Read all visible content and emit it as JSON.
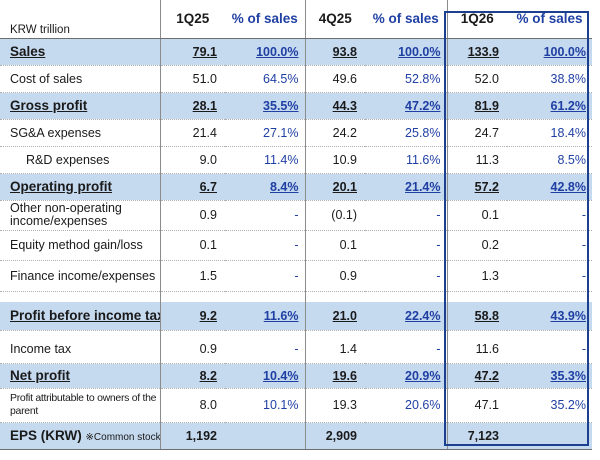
{
  "header": {
    "unit_label": "KRW trillion",
    "periods": [
      "1Q25",
      "4Q25",
      "1Q26"
    ],
    "pct_label": "% of sales"
  },
  "rows": [
    {
      "label": "Sales",
      "v1": "79.1",
      "p1": "100.0%",
      "v2": "93.8",
      "p2": "100.0%",
      "v3": "133.9",
      "p3": "100.0%"
    },
    {
      "label": "Cost of sales",
      "v1": "51.0",
      "p1": "64.5%",
      "v2": "49.6",
      "p2": "52.8%",
      "v3": "52.0",
      "p3": "38.8%"
    },
    {
      "label": "Gross profit",
      "v1": "28.1",
      "p1": "35.5%",
      "v2": "44.3",
      "p2": "47.2%",
      "v3": "81.9",
      "p3": "61.2%"
    },
    {
      "label": "SG&A expenses",
      "v1": "21.4",
      "p1": "27.1%",
      "v2": "24.2",
      "p2": "25.8%",
      "v3": "24.7",
      "p3": "18.4%"
    },
    {
      "label": "R&D expenses",
      "v1": "9.0",
      "p1": "11.4%",
      "v2": "10.9",
      "p2": "11.6%",
      "v3": "11.3",
      "p3": "8.5%"
    },
    {
      "label": "Operating profit",
      "v1": "6.7",
      "p1": "8.4%",
      "v2": "20.1",
      "p2": "21.4%",
      "v3": "57.2",
      "p3": "42.8%"
    },
    {
      "label": "Other non-operating income/expenses",
      "v1": "0.9",
      "p1": "-",
      "v2": "(0.1)",
      "p2": "-",
      "v3": "0.1",
      "p3": "-"
    },
    {
      "label": "Equity method gain/loss",
      "v1": "0.1",
      "p1": "-",
      "v2": "0.1",
      "p2": "-",
      "v3": "0.2",
      "p3": "-"
    },
    {
      "label": "Finance income/expenses",
      "v1": "1.5",
      "p1": "-",
      "v2": "0.9",
      "p2": "-",
      "v3": "1.3",
      "p3": "-"
    },
    {
      "label": "Profit before income tax",
      "v1": "9.2",
      "p1": "11.6%",
      "v2": "21.0",
      "p2": "22.4%",
      "v3": "58.8",
      "p3": "43.9%"
    },
    {
      "label": "Income tax",
      "v1": "0.9",
      "p1": "-",
      "v2": "1.4",
      "p2": "-",
      "v3": "11.6",
      "p3": "-"
    },
    {
      "label": "Net profit",
      "v1": "8.2",
      "p1": "10.4%",
      "v2": "19.6",
      "p2": "20.9%",
      "v3": "47.2",
      "p3": "35.3%"
    },
    {
      "label": "Profit attributable to owners of the parent",
      "v1": "8.0",
      "p1": "10.1%",
      "v2": "19.3",
      "p2": "20.6%",
      "v3": "47.1",
      "p3": "35.2%"
    },
    {
      "label": "EPS (KRW)",
      "note": "※Common stock",
      "v1": "1,192",
      "p1": "",
      "v2": "2,909",
      "p2": "",
      "v3": "7,123",
      "p3": ""
    }
  ],
  "colors": {
    "highlight": "#c5d9ef",
    "pct_text": "#1f3fa3",
    "box_border": "#1d3f8f"
  }
}
